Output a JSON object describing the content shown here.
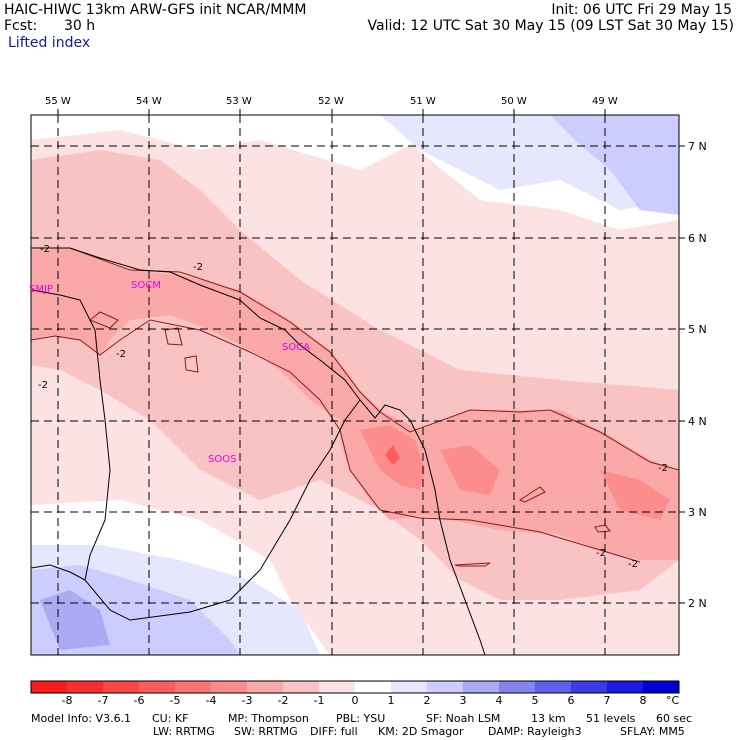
{
  "header": {
    "title_left": "HAIC-HIWC 13km ARW-GFS init   NCAR/MMM",
    "title_right": "Init: 06 UTC Fri 29 May 15",
    "fcst_label": "Fcst:",
    "fcst_value": "30 h",
    "valid": "Valid: 12 UTC Sat 30 May 15 (09 LST Sat 30 May 15)",
    "field": "Lifted index"
  },
  "map": {
    "lon_labels": [
      "55 W",
      "54 W",
      "53 W",
      "52 W",
      "51 W",
      "50 W",
      "49 W"
    ],
    "lat_labels": [
      "7 N",
      "6 N",
      "5 N",
      "4 N",
      "3 N",
      "2 N"
    ],
    "stations": [
      "SMJP",
      "SOCM",
      "SOCA",
      "SOOS"
    ],
    "contour_labels": [
      "-2",
      "-2",
      "-2",
      "-2",
      "-2",
      "-2",
      "-2"
    ]
  },
  "colorbar": {
    "ticks": [
      "-8",
      "-7",
      "-6",
      "-5",
      "-4",
      "-3",
      "-2",
      "-1",
      "0",
      "1",
      "2",
      "3",
      "4",
      "5",
      "6",
      "7",
      "8"
    ],
    "unit": "°C",
    "colors": [
      "#ff1a1a",
      "#ff2e2e",
      "#ff4545",
      "#ff5c5c",
      "#ff7373",
      "#fd8d8d",
      "#fba8a8",
      "#f9c3c3",
      "#fce2e2",
      "#ffffff",
      "#e6e6ff",
      "#ccccff",
      "#aaaaf5",
      "#8585f0",
      "#5e5eef",
      "#3a3ae6",
      "#1a1ae0",
      "#0000d6"
    ]
  },
  "footer": {
    "line1": [
      "Model Info: V3.6.1",
      "CU: KF",
      "MP: Thompson",
      "PBL: YSU",
      "SF: Noah LSM",
      "13 km",
      "51 levels",
      "60 sec"
    ],
    "line2": [
      "LW: RRTMG",
      "SW: RRTMG",
      "DIFF: full",
      "KM: 2D Smagor",
      "DAMP: Rayleigh3",
      "SFLAY: MM5"
    ]
  }
}
